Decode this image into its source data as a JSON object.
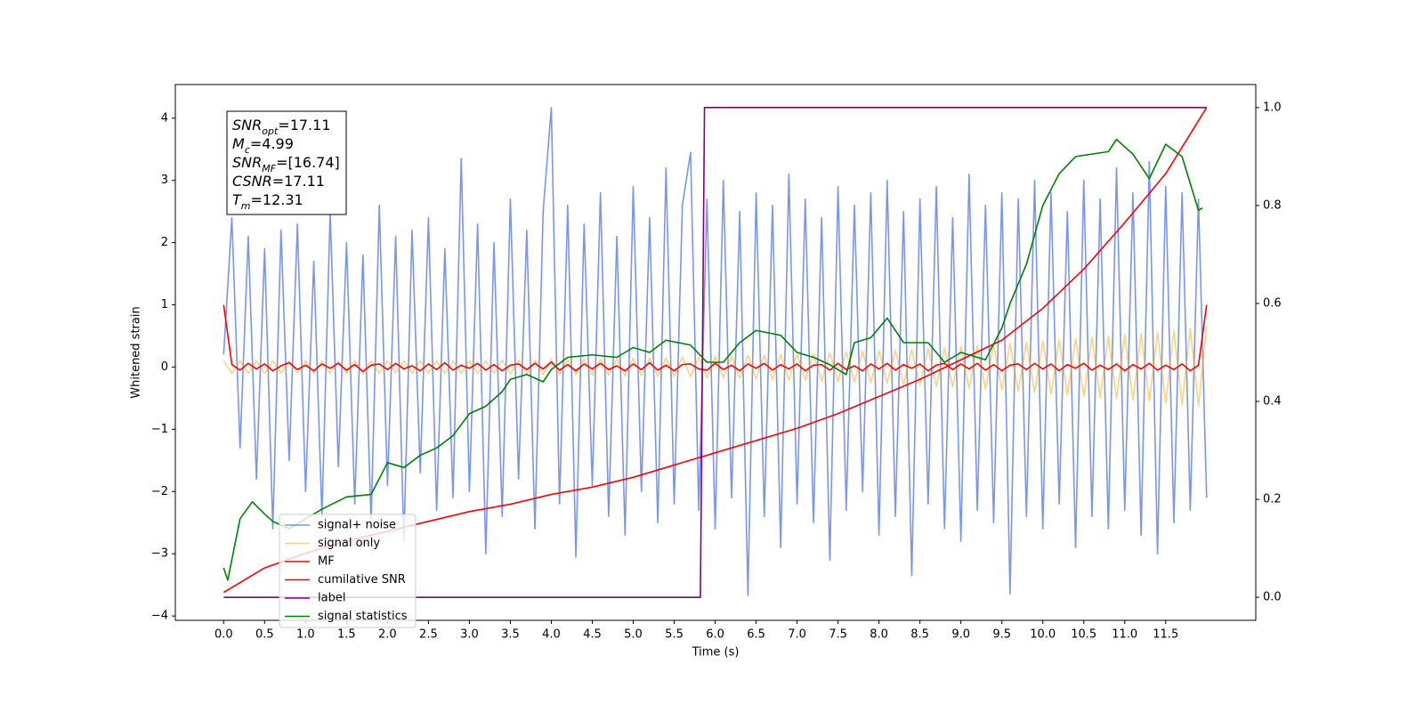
{
  "chart_data": {
    "type": "line",
    "xlabel": "Time (s)",
    "ylabel": "Whitened strain",
    "xlim": [
      -0.59,
      12.6
    ],
    "ylim": [
      -4.07,
      4.54
    ],
    "y2lim": [
      -0.047,
      1.047
    ],
    "xticks": [
      {
        "value": 0,
        "label": "0.0"
      },
      {
        "value": 0.5,
        "label": "0.5"
      },
      {
        "value": 1,
        "label": "1.0"
      },
      {
        "value": 1.5,
        "label": "1.5"
      },
      {
        "value": 2,
        "label": "2.0"
      },
      {
        "value": 2.5,
        "label": "2.5"
      },
      {
        "value": 3,
        "label": "3.0"
      },
      {
        "value": 3.5,
        "label": "3.5"
      },
      {
        "value": 4,
        "label": "4.0"
      },
      {
        "value": 4.5,
        "label": "4.5"
      },
      {
        "value": 5,
        "label": "5.0"
      },
      {
        "value": 5.5,
        "label": "5.5"
      },
      {
        "value": 6,
        "label": "6.0"
      },
      {
        "value": 6.5,
        "label": "6.5"
      },
      {
        "value": 7,
        "label": "7.0"
      },
      {
        "value": 7.5,
        "label": "7.5"
      },
      {
        "value": 8,
        "label": "8.0"
      },
      {
        "value": 8.5,
        "label": "8.5"
      },
      {
        "value": 9,
        "label": "9.0"
      },
      {
        "value": 9.5,
        "label": "9.5"
      },
      {
        "value": 10,
        "label": "10.0"
      },
      {
        "value": 10.5,
        "label": "10.5"
      },
      {
        "value": 11,
        "label": "11.0"
      },
      {
        "value": 11.5,
        "label": "11.5"
      }
    ],
    "yticks": [
      {
        "value": -4,
        "label": "−4"
      },
      {
        "value": -3,
        "label": "−3"
      },
      {
        "value": -2,
        "label": "−2"
      },
      {
        "value": -1,
        "label": "−1"
      },
      0,
      1,
      2,
      3,
      4
    ],
    "y2ticks": [
      {
        "value": 0,
        "label": "0.0"
      },
      {
        "value": 0.2,
        "label": "0.2"
      },
      {
        "value": 0.4,
        "label": "0.4"
      },
      {
        "value": 0.6,
        "label": "0.6"
      },
      {
        "value": 0.8,
        "label": "0.8"
      },
      {
        "value": 1,
        "label": "1.0"
      }
    ],
    "grid": false,
    "legend": "lower left",
    "annotation": [
      {
        "text": "SNR",
        "sub": "opt",
        "value": "=17.11"
      },
      {
        "text": "M",
        "sub": "c",
        "value": "=4.99"
      },
      {
        "text": "SNR",
        "sub": "MF",
        "value": "=[16.74]"
      },
      {
        "text": "CSNR",
        "value": "=17.11"
      },
      {
        "text": "T",
        "sub": "m",
        "value": "=12.31"
      }
    ],
    "x": [
      0,
      0.1,
      0.2,
      0.3,
      0.4,
      0.5,
      0.6,
      0.7,
      0.8,
      0.9,
      1,
      1.1,
      1.2,
      1.3,
      1.4,
      1.5,
      1.6,
      1.7,
      1.8,
      1.9,
      2,
      2.1,
      2.2,
      2.3,
      2.4,
      2.5,
      2.6,
      2.7,
      2.8,
      2.9,
      3,
      3.1,
      3.2,
      3.3,
      3.4,
      3.5,
      3.6,
      3.7,
      3.8,
      3.9,
      4,
      4.1,
      4.2,
      4.3,
      4.4,
      4.5,
      4.6,
      4.7,
      4.8,
      4.9,
      5,
      5.1,
      5.2,
      5.3,
      5.4,
      5.5,
      5.6,
      5.7,
      5.8,
      5.9,
      6,
      6.1,
      6.2,
      6.3,
      6.4,
      6.5,
      6.6,
      6.7,
      6.8,
      6.9,
      7,
      7.1,
      7.2,
      7.3,
      7.4,
      7.5,
      7.6,
      7.7,
      7.8,
      7.9,
      8,
      8.1,
      8.2,
      8.3,
      8.4,
      8.5,
      8.6,
      8.7,
      8.8,
      8.9,
      9,
      9.1,
      9.2,
      9.3,
      9.4,
      9.5,
      9.6,
      9.7,
      9.8,
      9.9,
      10,
      10.1,
      10.2,
      10.3,
      10.4,
      10.5,
      10.6,
      10.7,
      10.8,
      10.9,
      11,
      11.1,
      11.2,
      11.3,
      11.4,
      11.5,
      11.6,
      11.7,
      11.8,
      11.9,
      12
    ],
    "series": [
      {
        "name": "signal+ noise",
        "color": "#4169e1",
        "opacity": 0.7,
        "values": [
          0.2,
          2.4,
          -1.3,
          2.1,
          -1.8,
          1.9,
          -2.6,
          2.2,
          -1.5,
          2.3,
          -2.0,
          1.7,
          -2.4,
          2.5,
          -1.6,
          2.0,
          -2.2,
          1.8,
          -2.5,
          2.6,
          -1.9,
          2.1,
          -2.8,
          2.2,
          -1.7,
          2.4,
          -2.3,
          1.9,
          -2.1,
          3.35,
          -2.0,
          2.3,
          -3.0,
          2.0,
          -2.4,
          2.7,
          -1.8,
          2.2,
          -2.6,
          2.5,
          4.17,
          -2.2,
          2.6,
          -3.05,
          2.3,
          -1.9,
          2.8,
          -2.4,
          2.1,
          -2.7,
          2.9,
          -2.0,
          2.4,
          -2.5,
          3.2,
          -2.2,
          2.6,
          3.45,
          -2.3,
          2.7,
          -2.6,
          3.0,
          -2.1,
          2.5,
          -3.67,
          2.8,
          -2.4,
          2.6,
          -2.9,
          3.1,
          -2.2,
          2.7,
          -2.5,
          2.4,
          -3.1,
          2.9,
          -2.3,
          2.6,
          -2.0,
          2.8,
          -2.7,
          3.0,
          -2.4,
          2.5,
          -3.35,
          2.7,
          -2.2,
          2.9,
          -2.6,
          2.4,
          -2.8,
          3.1,
          -2.3,
          2.6,
          -2.5,
          2.8,
          -3.65,
          2.7,
          -2.4,
          3.0,
          -2.6,
          2.8,
          -2.2,
          2.5,
          -2.9,
          3.0,
          -2.4,
          2.7,
          -2.6,
          3.2,
          -2.3,
          2.8,
          -2.7,
          3.3,
          -3.0,
          2.9,
          -2.5,
          2.8,
          -2.3,
          2.7,
          -2.1
        ]
      },
      {
        "name": "signal only",
        "color": "#ffa500",
        "opacity": 0.5,
        "values": [
          0.1,
          -0.1,
          0.1,
          -0.1,
          0.1,
          -0.1,
          0.1,
          -0.1,
          0.1,
          -0.1,
          0.1,
          -0.1,
          0.1,
          -0.1,
          0.1,
          -0.1,
          0.1,
          -0.1,
          0.1,
          -0.1,
          0.1,
          -0.1,
          0.1,
          -0.1,
          0.1,
          -0.1,
          0.1,
          -0.1,
          0.1,
          -0.1,
          0.1,
          -0.1,
          0.1,
          -0.1,
          0.11,
          -0.11,
          0.11,
          -0.11,
          0.11,
          -0.12,
          0.12,
          -0.12,
          0.12,
          -0.12,
          0.13,
          -0.13,
          0.13,
          -0.13,
          0.13,
          -0.14,
          0.14,
          -0.14,
          0.14,
          -0.15,
          0.15,
          -0.15,
          0.16,
          -0.16,
          0.16,
          -0.17,
          0.17,
          -0.17,
          0.18,
          -0.18,
          0.19,
          -0.19,
          0.19,
          -0.2,
          0.2,
          -0.21,
          0.21,
          -0.21,
          0.22,
          -0.22,
          0.23,
          -0.23,
          0.24,
          -0.24,
          0.25,
          -0.25,
          0.26,
          -0.26,
          0.27,
          -0.28,
          0.28,
          -0.29,
          0.3,
          -0.31,
          0.31,
          -0.32,
          0.33,
          -0.34,
          0.34,
          -0.35,
          0.36,
          -0.37,
          0.38,
          -0.39,
          0.4,
          -0.41,
          0.42,
          -0.43,
          0.44,
          -0.45,
          0.46,
          -0.47,
          0.48,
          -0.49,
          0.5,
          -0.51,
          0.52,
          -0.53,
          0.54,
          -0.55,
          0.56,
          -0.58,
          0.59,
          -0.6,
          0.62,
          -0.63,
          0.65
        ]
      },
      {
        "name": "MF",
        "color": "#ff0000",
        "values": [
          1.0,
          0.04,
          -0.05,
          0.06,
          -0.03,
          0.05,
          -0.06,
          0.02,
          0.07,
          -0.04,
          0.03,
          -0.06,
          0.05,
          -0.02,
          0.06,
          -0.05,
          0.04,
          -0.07,
          0.03,
          0.05,
          -0.04,
          0.06,
          -0.03,
          0.02,
          -0.06,
          0.05,
          -0.04,
          0.07,
          -0.05,
          0.03,
          -0.02,
          0.06,
          -0.05,
          0.04,
          -0.06,
          0.03,
          0.05,
          -0.04,
          0.06,
          -0.03,
          0.08,
          -0.05,
          0.04,
          -0.06,
          0.05,
          -0.03,
          0.06,
          -0.04,
          0.02,
          -0.06,
          0.05,
          -0.04,
          0.07,
          -0.05,
          0.03,
          -0.06,
          0.04,
          0.05,
          -0.03,
          -0.05,
          0.06,
          -0.04,
          0.03,
          -0.06,
          0.05,
          -0.02,
          0.06,
          -0.05,
          0.04,
          -0.03,
          0.05,
          -0.06,
          0.03,
          0.04,
          -0.05,
          0.06,
          -0.04,
          0.02,
          -0.06,
          0.05,
          -0.03,
          0.06,
          -0.05,
          0.04,
          -0.02,
          0.05,
          -0.06,
          0.03,
          0.06,
          -0.04,
          0.05,
          -0.03,
          0.06,
          -0.05,
          0.04,
          -0.06,
          0.03,
          0.05,
          -0.04,
          0.06,
          -0.03,
          0.05,
          -0.06,
          0.04,
          -0.02,
          0.06,
          -0.05,
          0.03,
          -0.04,
          0.05,
          -0.06,
          0.04,
          -0.03,
          0.06,
          -0.05,
          0.03,
          -0.04,
          0.05,
          -0.06,
          0.03,
          1.0
        ]
      },
      {
        "name": "cumilative SNR",
        "color": "#ff0000",
        "axis": "y2",
        "x": [
          0,
          0.5,
          1,
          1.5,
          2,
          2.5,
          3,
          3.5,
          4,
          4.5,
          5,
          5.5,
          6,
          6.5,
          7,
          7.5,
          8,
          8.5,
          9,
          9.5,
          10,
          10.5,
          11,
          11.5,
          12
        ],
        "values": [
          0.01,
          0.06,
          0.09,
          0.115,
          0.135,
          0.155,
          0.175,
          0.19,
          0.21,
          0.225,
          0.245,
          0.27,
          0.295,
          0.32,
          0.345,
          0.375,
          0.41,
          0.445,
          0.485,
          0.525,
          0.59,
          0.67,
          0.765,
          0.865,
          1.0
        ]
      },
      {
        "name": "label",
        "color": "#800080",
        "axis": "y2",
        "x": [
          0,
          5.82,
          5.87,
          12
        ],
        "values": [
          0,
          0,
          1,
          1
        ]
      },
      {
        "name": "signal statistics",
        "color": "#008000",
        "axis": "y2",
        "x": [
          0,
          0.05,
          0.2,
          0.35,
          0.5,
          0.6,
          0.8,
          1,
          1.2,
          1.5,
          1.8,
          2,
          2.2,
          2.4,
          2.6,
          2.8,
          3,
          3.2,
          3.4,
          3.5,
          3.7,
          3.9,
          4,
          4.2,
          4.5,
          4.8,
          5,
          5.2,
          5.4,
          5.7,
          5.9,
          6.1,
          6.3,
          6.5,
          6.8,
          7,
          7.2,
          7.4,
          7.6,
          7.7,
          7.9,
          8.1,
          8.3,
          8.6,
          8.8,
          9,
          9.3,
          9.5,
          9.6,
          9.8,
          10,
          10.2,
          10.4,
          10.6,
          10.8,
          10.9,
          11.1,
          11.3,
          11.5,
          11.7,
          11.9,
          11.95
        ],
        "values": [
          0.06,
          0.035,
          0.16,
          0.195,
          0.17,
          0.155,
          0.14,
          0.16,
          0.18,
          0.205,
          0.21,
          0.275,
          0.265,
          0.29,
          0.305,
          0.33,
          0.375,
          0.39,
          0.42,
          0.445,
          0.455,
          0.44,
          0.465,
          0.49,
          0.495,
          0.49,
          0.51,
          0.5,
          0.525,
          0.515,
          0.48,
          0.48,
          0.52,
          0.545,
          0.535,
          0.5,
          0.49,
          0.475,
          0.455,
          0.52,
          0.53,
          0.57,
          0.52,
          0.52,
          0.48,
          0.5,
          0.485,
          0.55,
          0.6,
          0.68,
          0.8,
          0.865,
          0.9,
          0.905,
          0.91,
          0.935,
          0.905,
          0.855,
          0.925,
          0.9,
          0.79,
          0.795
        ]
      }
    ]
  }
}
